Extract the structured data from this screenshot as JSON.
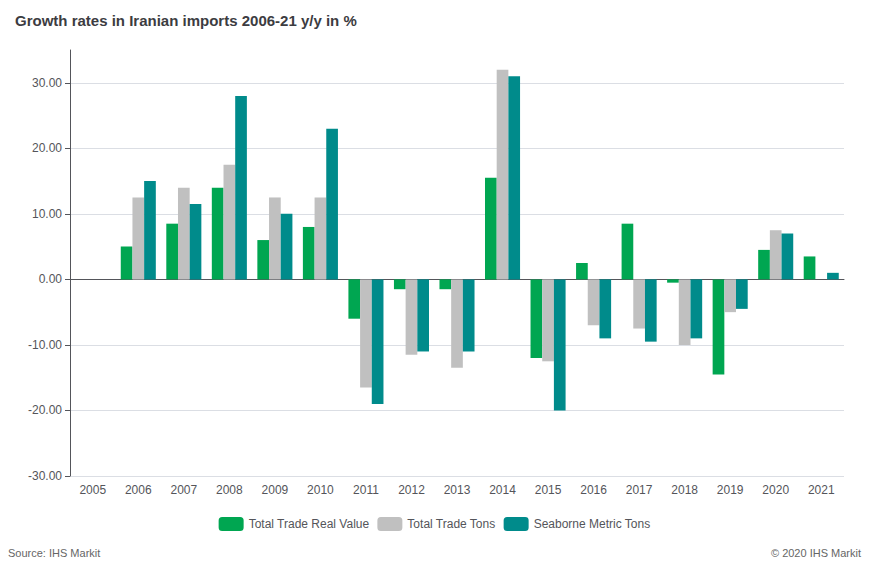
{
  "chart_data": {
    "type": "bar",
    "title": "Growth rates in Iranian imports 2006-21 y/y in %",
    "categories": [
      "2005",
      "2006",
      "2007",
      "2008",
      "2009",
      "2010",
      "2011",
      "2012",
      "2013",
      "2014",
      "2015",
      "2016",
      "2017",
      "2018",
      "2019",
      "2020",
      "2021"
    ],
    "series": [
      {
        "name": "Total Trade Real Value",
        "color": "#00a651",
        "values": [
          0,
          5.0,
          8.5,
          14.0,
          6.0,
          8.0,
          -6.0,
          -1.5,
          -1.5,
          15.5,
          -12.0,
          2.5,
          8.5,
          -0.5,
          -14.5,
          4.5,
          3.5
        ]
      },
      {
        "name": "Total Trade Tons",
        "color": "#c0c0c0",
        "values": [
          0,
          12.5,
          14.0,
          17.5,
          12.5,
          12.5,
          -16.5,
          -11.5,
          -13.5,
          32.0,
          -12.5,
          -7.0,
          -7.5,
          -10.0,
          -5.0,
          7.5,
          0.0
        ]
      },
      {
        "name": "Seaborne Metric Tons",
        "color": "#008b8b",
        "values": [
          0,
          15.0,
          11.5,
          28.0,
          10.0,
          23.0,
          -19.0,
          -11.0,
          -11.0,
          31.0,
          -20.0,
          -9.0,
          -9.5,
          -9.0,
          -4.5,
          7.0,
          1.0
        ]
      }
    ],
    "ylim": [
      -30,
      35
    ],
    "yticks": [
      {
        "value": -30,
        "label": "-30.00"
      },
      {
        "value": -20,
        "label": "-20.00"
      },
      {
        "value": -10,
        "label": "-10.00"
      },
      {
        "value": 0,
        "label": "0.00"
      },
      {
        "value": 10,
        "label": "10.00"
      },
      {
        "value": 20,
        "label": "20.00"
      },
      {
        "value": 30,
        "label": "30.00"
      }
    ],
    "grid": true,
    "legend": "bottom",
    "annotations": [
      "Source: IHS Markit",
      "© 2020 IHS Markit"
    ]
  }
}
